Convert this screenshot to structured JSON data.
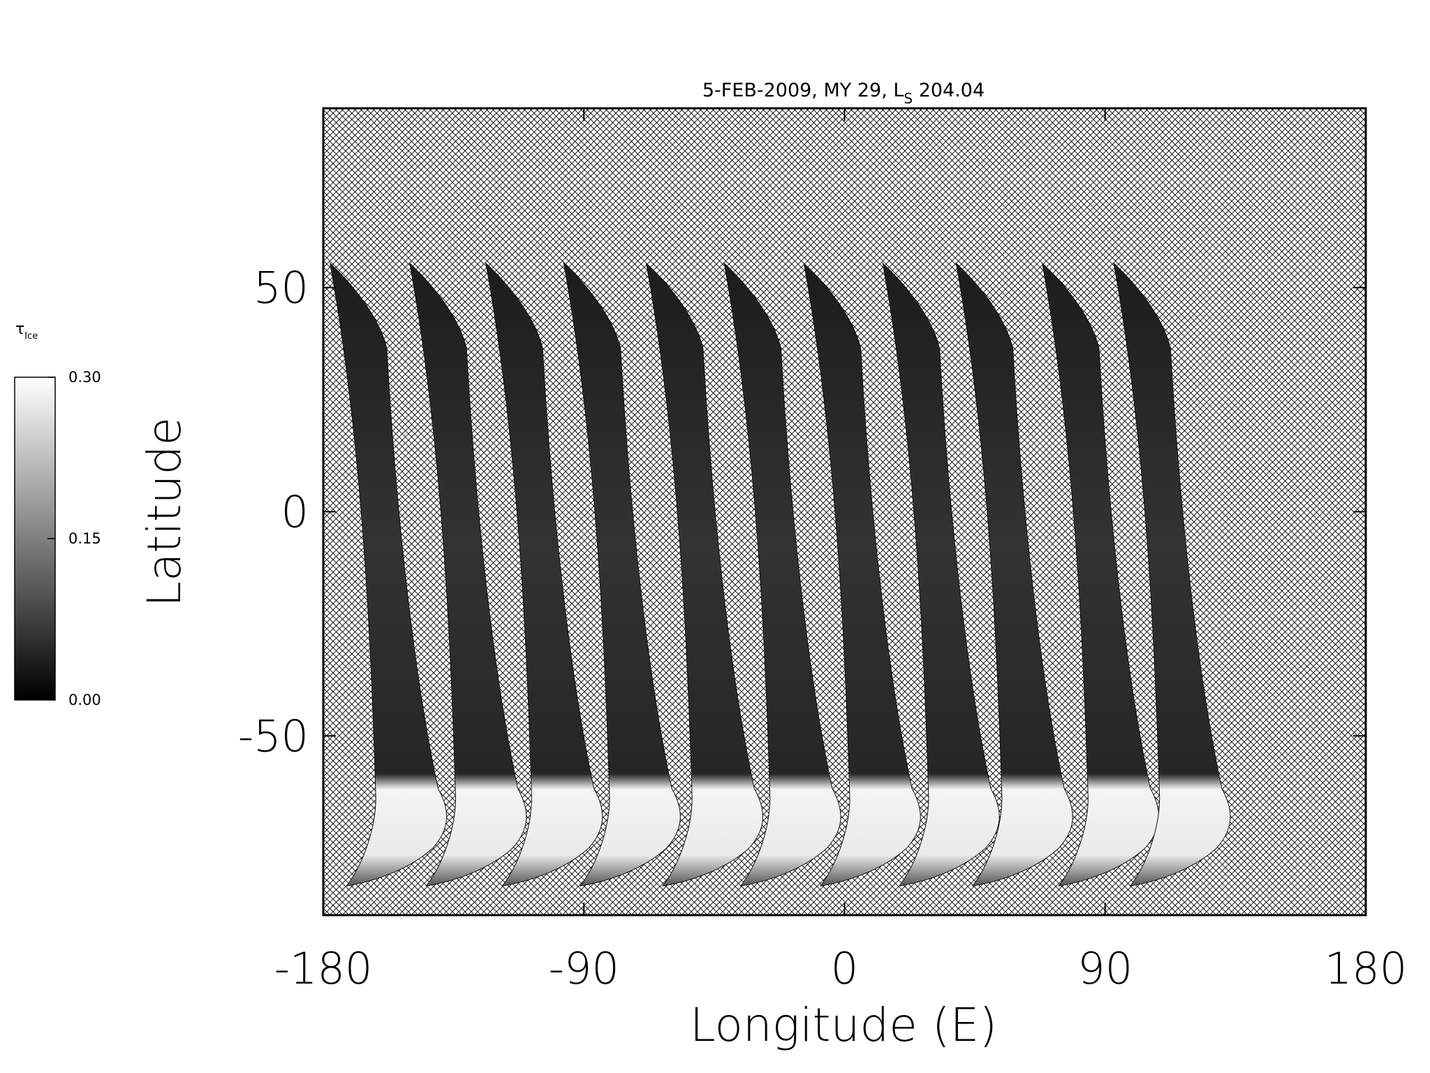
{
  "chart_data": {
    "type": "map",
    "title_parts": [
      "5-FEB-2009, MY 29,  L",
      "S",
      " 204.04"
    ],
    "xlabel": "Longitude (E)",
    "ylabel": "Latitude",
    "xlim": [
      -180,
      180
    ],
    "xticks": [
      -180,
      -90,
      0,
      90,
      180
    ],
    "ylim": [
      -90,
      90
    ],
    "yticks": [
      -50,
      0,
      50
    ],
    "colorbar": {
      "label_parts": [
        "τ",
        "Ice"
      ],
      "lim": [
        0,
        0.3
      ],
      "ticks": [
        {
          "value": 0,
          "label": "0.00"
        },
        {
          "value": 0.15,
          "label": "0.15"
        },
        {
          "value": 0.3,
          "label": "0.30"
        }
      ]
    }
  }
}
